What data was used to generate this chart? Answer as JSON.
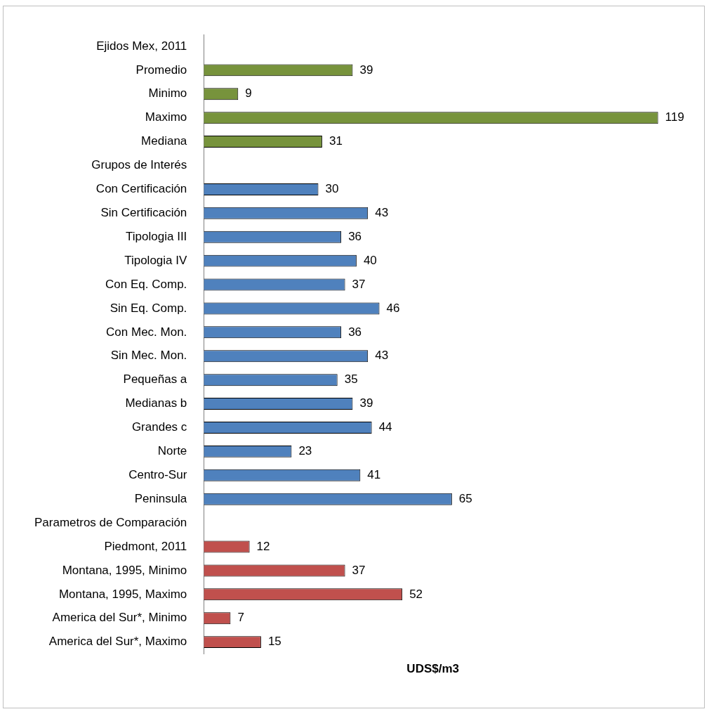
{
  "chart_data": {
    "type": "bar",
    "orientation": "horizontal",
    "xlabel": "UDS$/m3",
    "data_labels": true,
    "categories": [
      "Ejidos Mex, 2011",
      "Promedio",
      "Minimo",
      "Maximo",
      "Mediana",
      "Grupos de Interés",
      "Con Certificación",
      "Sin Certificación",
      "Tipologia III",
      "Tipologia IV",
      "Con Eq. Comp.",
      "Sin Eq. Comp.",
      "Con Mec. Mon.",
      "Sin Mec. Mon.",
      "Pequeñas a",
      "Medianas b",
      "Grandes c",
      "Norte",
      "Centro-Sur",
      "Peninsula",
      "Parametros de Comparación",
      "Piedmont, 2011",
      "Montana, 1995, Minimo",
      "Montana, 1995, Maximo",
      "America del Sur*, Minimo",
      "America del Sur*, Maximo"
    ],
    "values": [
      null,
      39,
      9,
      119,
      31,
      null,
      30,
      43,
      36,
      40,
      37,
      46,
      36,
      43,
      35,
      39,
      44,
      23,
      41,
      65,
      null,
      12,
      37,
      52,
      7,
      15
    ],
    "colors": [
      "#77933c",
      "#77933c",
      "#77933c",
      "#77933c",
      "#77933c",
      "#4f81bd",
      "#4f81bd",
      "#4f81bd",
      "#4f81bd",
      "#4f81bd",
      "#4f81bd",
      "#4f81bd",
      "#4f81bd",
      "#4f81bd",
      "#4f81bd",
      "#4f81bd",
      "#4f81bd",
      "#4f81bd",
      "#4f81bd",
      "#4f81bd",
      "#c0504d",
      "#c0504d",
      "#c0504d",
      "#c0504d",
      "#c0504d",
      "#c0504d"
    ]
  }
}
